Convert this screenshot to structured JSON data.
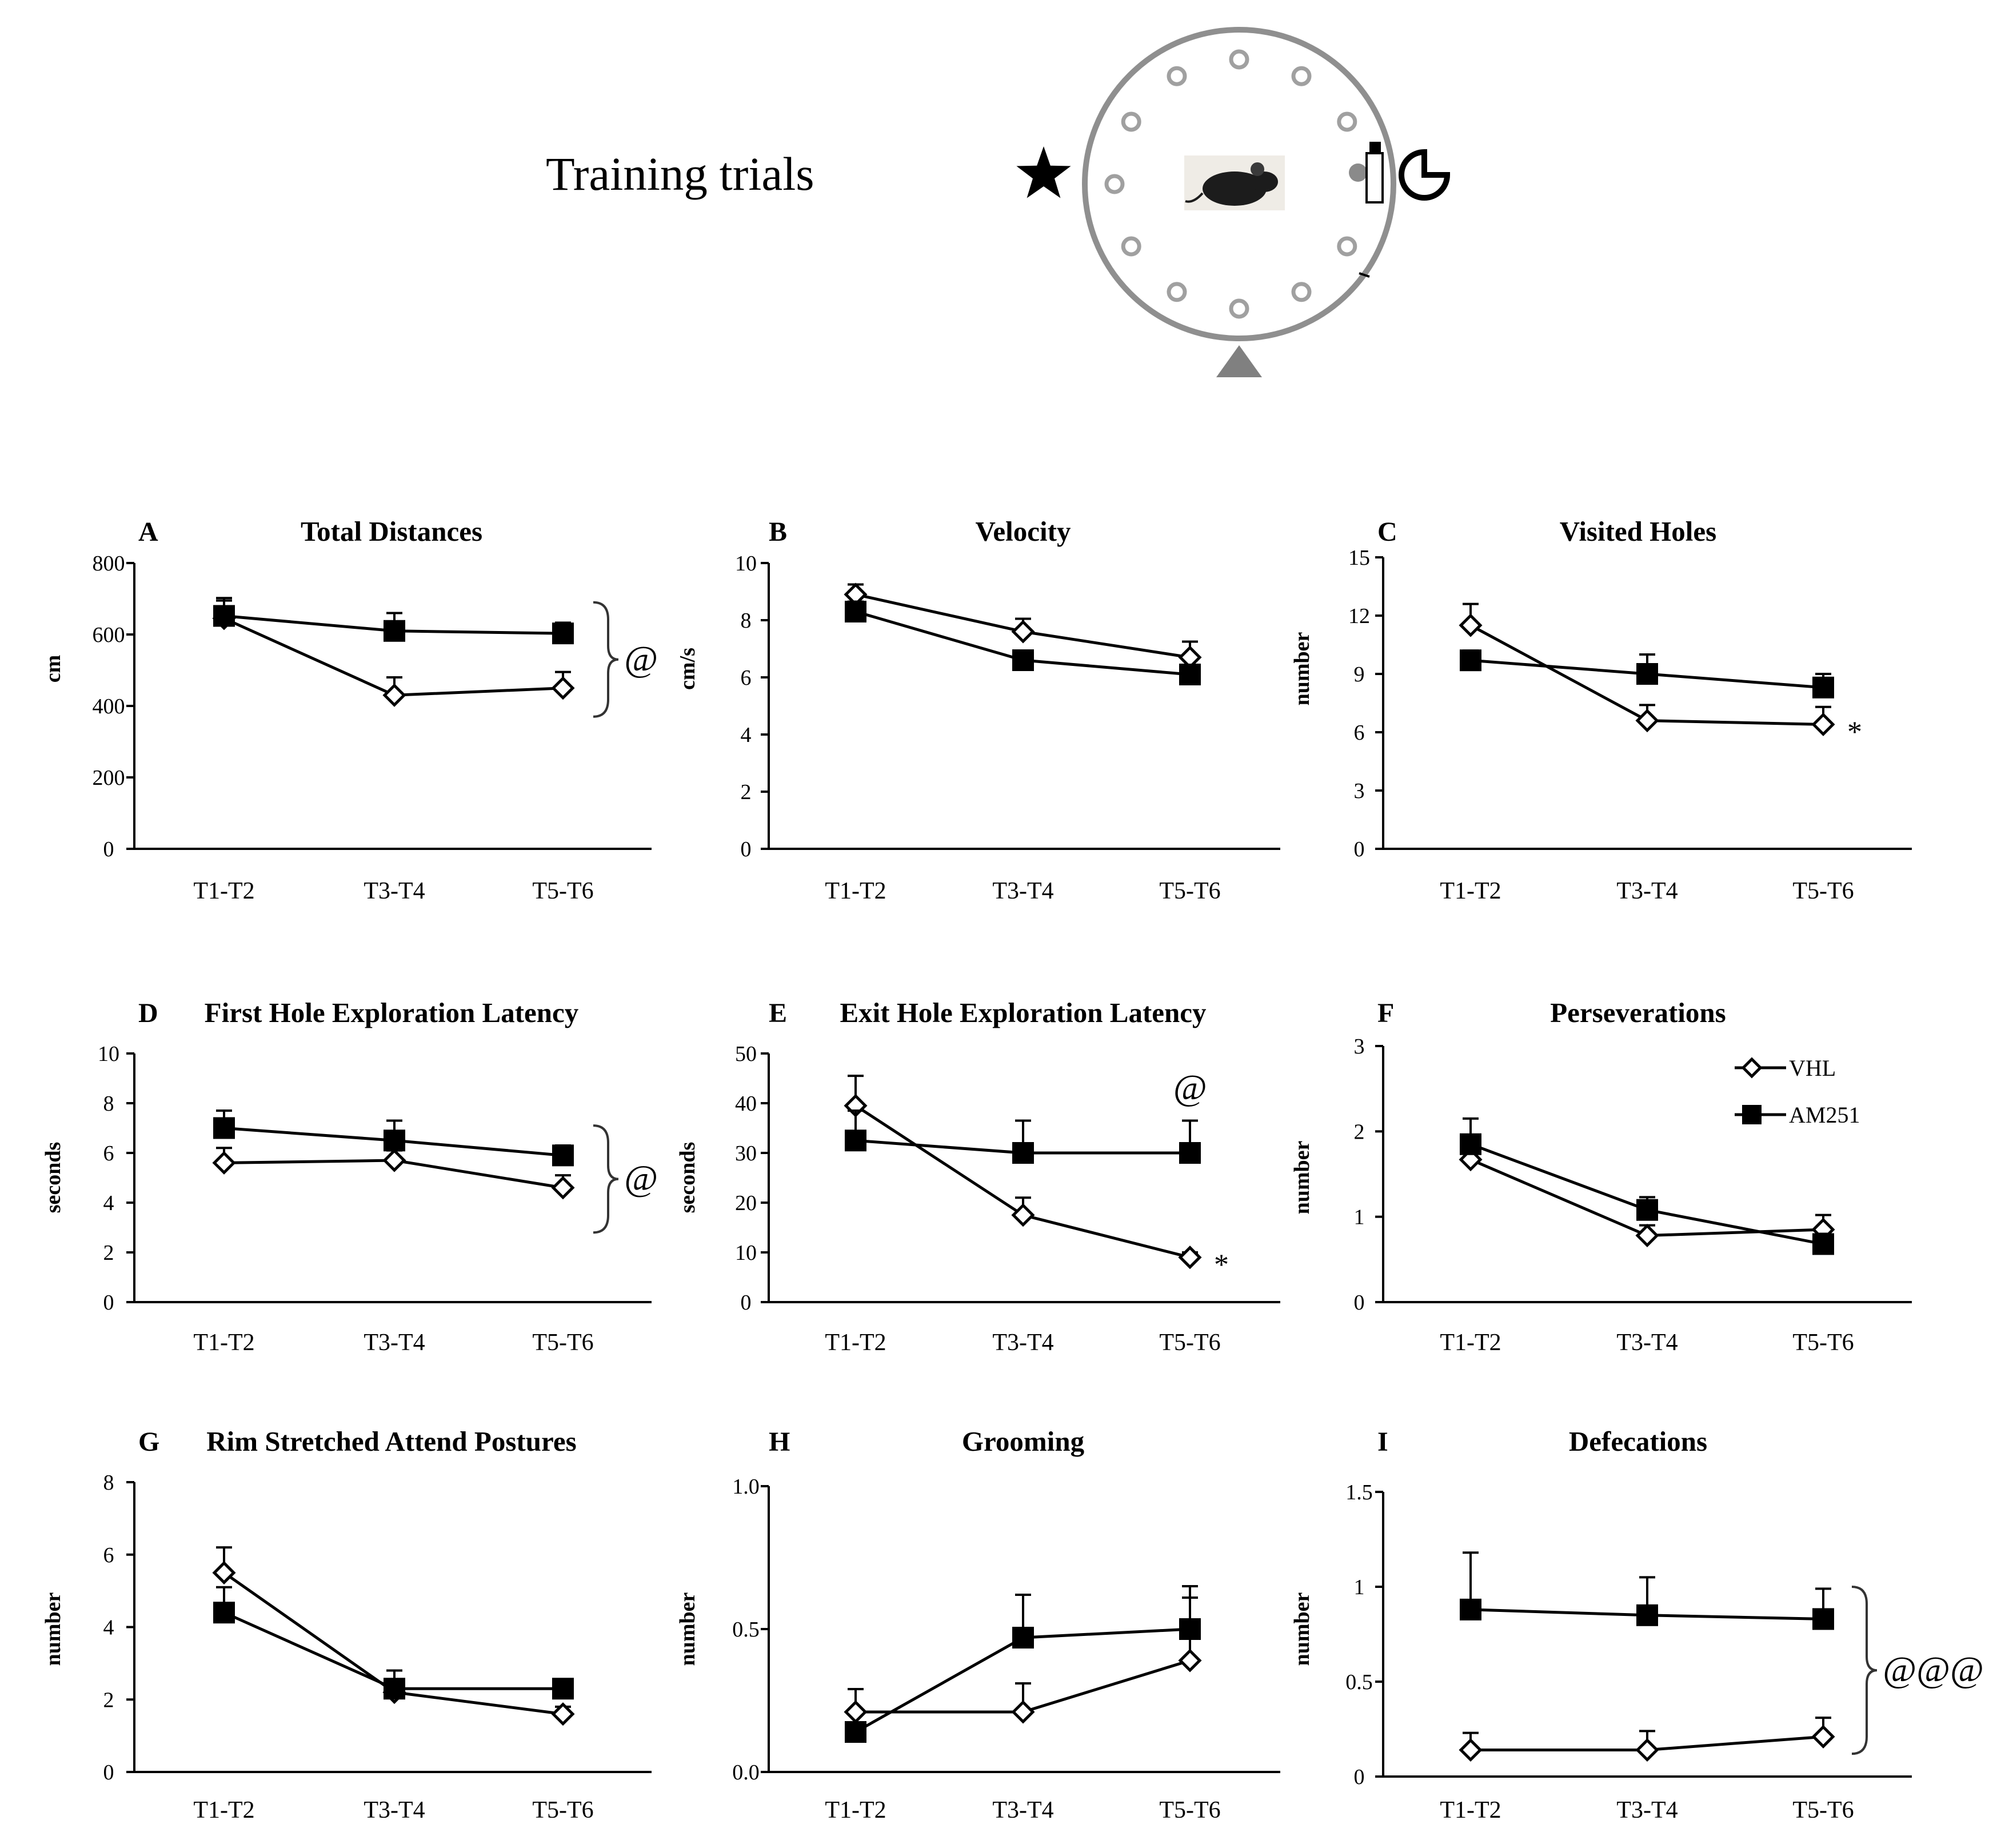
{
  "header": {
    "title": "Training trials",
    "maze_icons": [
      "star-icon",
      "mouse-icon",
      "bottle-icon",
      "pacman-icon",
      "triangle-icon"
    ]
  },
  "colors": {
    "ink": "#000000",
    "maze_gray": "#8f8f8f",
    "background": "#ffffff"
  },
  "legend": {
    "vhl": "VHL",
    "am251": "AM251"
  },
  "chart_data": [
    {
      "type": "line",
      "letter": "A",
      "title": "Total Distances",
      "ylabel": "cm",
      "categories": [
        "T1-T2",
        "T3-T4",
        "T5-T6"
      ],
      "ylim": [
        0,
        800
      ],
      "yticks": [
        "0",
        "200",
        "400",
        "600",
        "800"
      ],
      "series": [
        {
          "name": "VHL",
          "marker": "diamond",
          "values": [
            645,
            430,
            450
          ],
          "err": [
            50,
            50,
            45
          ]
        },
        {
          "name": "AM251",
          "marker": "square",
          "values": [
            652,
            610,
            603
          ],
          "err": [
            50,
            50,
            30
          ]
        }
      ],
      "annotations": [
        {
          "text": "@",
          "type": "bracket",
          "y_range": [
            370,
            690
          ]
        }
      ]
    },
    {
      "type": "line",
      "letter": "B",
      "title": "Velocity",
      "ylabel": "cm/s",
      "categories": [
        "T1-T2",
        "T3-T4",
        "T5-T6"
      ],
      "ylim": [
        0,
        10
      ],
      "yticks": [
        "0",
        "2",
        "4",
        "6",
        "8",
        "10"
      ],
      "series": [
        {
          "name": "VHL",
          "marker": "diamond",
          "values": [
            8.9,
            7.6,
            6.7
          ],
          "err": [
            0.35,
            0.45,
            0.55
          ]
        },
        {
          "name": "AM251",
          "marker": "square",
          "values": [
            8.3,
            6.6,
            6.1
          ],
          "err": [
            0.35,
            0.3,
            0.3
          ]
        }
      ],
      "annotations": []
    },
    {
      "type": "line",
      "letter": "C",
      "title": "Visited Holes",
      "ylabel": "number",
      "categories": [
        "T1-T2",
        "T3-T4",
        "T5-T6"
      ],
      "ylim": [
        0,
        15
      ],
      "yticks": [
        "0",
        "3",
        "6",
        "9",
        "12",
        "15"
      ],
      "series": [
        {
          "name": "VHL",
          "marker": "diamond",
          "values": [
            11.5,
            6.6,
            6.4
          ],
          "err": [
            1.1,
            0.8,
            0.9
          ]
        },
        {
          "name": "AM251",
          "marker": "square",
          "values": [
            9.7,
            9.0,
            8.3
          ],
          "err": [
            0.5,
            1.0,
            0.7
          ]
        }
      ],
      "annotations": [
        {
          "text": "*",
          "type": "asterisk",
          "index": 2,
          "y": 6.4
        }
      ]
    },
    {
      "type": "line",
      "letter": "D",
      "title": "First Hole Exploration Latency",
      "ylabel": "seconds",
      "categories": [
        "T1-T2",
        "T3-T4",
        "T5-T6"
      ],
      "ylim": [
        0,
        10
      ],
      "yticks": [
        "0",
        "2",
        "4",
        "6",
        "8",
        "10"
      ],
      "series": [
        {
          "name": "VHL",
          "marker": "diamond",
          "values": [
            5.6,
            5.7,
            4.6
          ],
          "err": [
            0.6,
            0.4,
            0.5
          ]
        },
        {
          "name": "AM251",
          "marker": "square",
          "values": [
            7.0,
            6.5,
            5.9
          ],
          "err": [
            0.7,
            0.8,
            0.4
          ]
        }
      ],
      "annotations": [
        {
          "text": "@",
          "type": "bracket",
          "y_range": [
            2.8,
            7.1
          ]
        }
      ]
    },
    {
      "type": "line",
      "letter": "E",
      "title": "Exit Hole Exploration Latency",
      "ylabel": "seconds",
      "categories": [
        "T1-T2",
        "T3-T4",
        "T5-T6"
      ],
      "ylim": [
        0,
        50
      ],
      "yticks": [
        "0",
        "10",
        "20",
        "30",
        "40",
        "50"
      ],
      "series": [
        {
          "name": "VHL",
          "marker": "diamond",
          "values": [
            39.5,
            17.5,
            9.0
          ],
          "err": [
            6.0,
            3.5,
            1.0
          ]
        },
        {
          "name": "AM251",
          "marker": "square",
          "values": [
            32.5,
            30.0,
            30.0
          ],
          "err": [
            6.0,
            6.5,
            6.5
          ]
        }
      ],
      "annotations": [
        {
          "text": "@",
          "type": "above",
          "index": 2,
          "y": 43
        },
        {
          "text": "*",
          "type": "asterisk",
          "index": 2,
          "y": 9.0
        }
      ]
    },
    {
      "type": "line",
      "letter": "F",
      "title": "Perseverations",
      "ylabel": "number",
      "categories": [
        "T1-T2",
        "T3-T4",
        "T5-T6"
      ],
      "ylim": [
        0,
        3
      ],
      "yticks": [
        "0",
        "1",
        "2",
        "3"
      ],
      "series": [
        {
          "name": "VHL",
          "marker": "diamond",
          "values": [
            1.67,
            0.78,
            0.85
          ],
          "err": [
            0.2,
            0.12,
            0.17
          ]
        },
        {
          "name": "AM251",
          "marker": "square",
          "values": [
            1.85,
            1.08,
            0.68
          ],
          "err": [
            0.3,
            0.15,
            0.12
          ]
        }
      ],
      "annotations": [],
      "show_legend": true
    },
    {
      "type": "line",
      "letter": "G",
      "title": "Rim Stretched Attend Postures",
      "ylabel": "number",
      "categories": [
        "T1-T2",
        "T3-T4",
        "T5-T6"
      ],
      "ylim": [
        0,
        8
      ],
      "yticks": [
        "0",
        "2",
        "4",
        "6",
        "8"
      ],
      "series": [
        {
          "name": "VHL",
          "marker": "diamond",
          "values": [
            5.5,
            2.2,
            1.6
          ],
          "err": [
            0.7,
            0.3,
            0.2
          ]
        },
        {
          "name": "AM251",
          "marker": "square",
          "values": [
            4.4,
            2.3,
            2.3
          ],
          "err": [
            0.7,
            0.5,
            0.25
          ]
        }
      ],
      "annotations": []
    },
    {
      "type": "line",
      "letter": "H",
      "title": "Grooming",
      "ylabel": "number",
      "categories": [
        "T1-T2",
        "T3-T4",
        "T5-T6"
      ],
      "ylim": [
        0,
        1
      ],
      "yticks": [
        "0.0",
        "0.5",
        "1.0"
      ],
      "series": [
        {
          "name": "VHL",
          "marker": "diamond",
          "values": [
            0.21,
            0.21,
            0.39
          ],
          "err": [
            0.08,
            0.1,
            0.22
          ]
        },
        {
          "name": "AM251",
          "marker": "square",
          "values": [
            0.14,
            0.47,
            0.5
          ],
          "err": [
            0.02,
            0.15,
            0.15
          ]
        }
      ],
      "annotations": []
    },
    {
      "type": "line",
      "letter": "I",
      "title": "Defecations",
      "ylabel": "number",
      "categories": [
        "T1-T2",
        "T3-T4",
        "T5-T6"
      ],
      "ylim": [
        0,
        1.5
      ],
      "yticks": [
        "0",
        "0.5",
        "1",
        "1.5"
      ],
      "series": [
        {
          "name": "VHL",
          "marker": "diamond",
          "values": [
            0.14,
            0.14,
            0.21
          ],
          "err": [
            0.09,
            0.1,
            0.1
          ]
        },
        {
          "name": "AM251",
          "marker": "square",
          "values": [
            0.88,
            0.85,
            0.83
          ],
          "err": [
            0.3,
            0.2,
            0.16
          ]
        }
      ],
      "annotations": [
        {
          "text": "@@@",
          "type": "bracket",
          "y_range": [
            0.12,
            1.0
          ]
        }
      ]
    }
  ]
}
